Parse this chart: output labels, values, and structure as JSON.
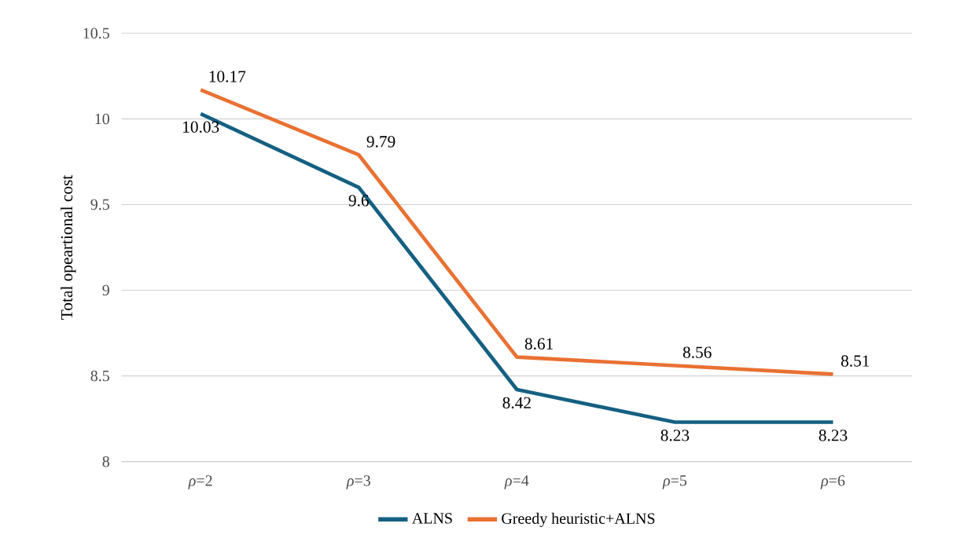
{
  "chart_data": {
    "type": "line",
    "ylabel": "Total opeartional cost",
    "categories": [
      "*ρ*=2",
      "*ρ*=3",
      "*ρ*=4",
      "*ρ*=5",
      "*ρ*=6"
    ],
    "series": [
      {
        "name": "ALNS",
        "color": "#156082",
        "values": [
          10.03,
          9.6,
          8.42,
          8.23,
          8.23
        ]
      },
      {
        "name": "Greedy heuristic+ALNS",
        "color": "#e97132",
        "values": [
          10.17,
          9.79,
          8.61,
          8.56,
          8.51
        ]
      }
    ],
    "ylim": [
      8,
      10.5
    ],
    "yticks": [
      8,
      8.5,
      9,
      9.5,
      10,
      10.5
    ],
    "grid": "y",
    "legend": "bottom",
    "data_labels": true,
    "marker": "none",
    "line_style": "solid"
  }
}
